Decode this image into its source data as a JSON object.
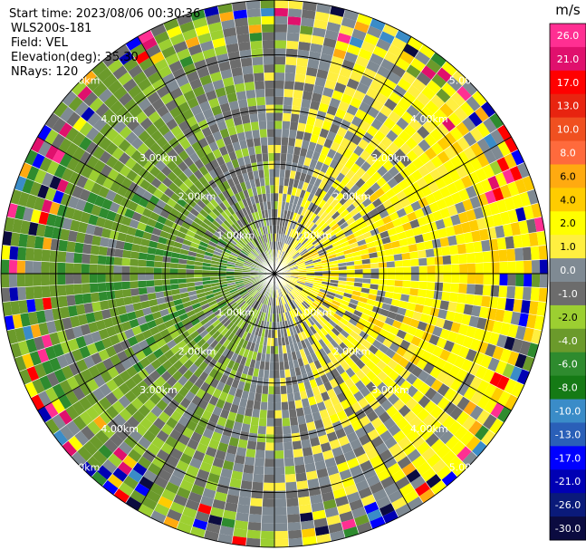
{
  "info": {
    "start_time": "Start time: 2023/08/06 00:30:36",
    "station": "WLS200s-181",
    "field": "Field: VEL",
    "elevation": "Elevation(deg): 35.30",
    "nrays": "NRays: 120"
  },
  "chart_data": {
    "type": "heatmap",
    "projection": "polar PPI (plan position indicator)",
    "field": "VEL",
    "units": "m/s",
    "nrays": 120,
    "range_rings_km": [
      1.0,
      2.0,
      3.0,
      4.0,
      5.0
    ],
    "ring_labels": [
      "1.00km",
      "2.00km",
      "3.00km",
      "4.00km",
      "5.00km"
    ],
    "colorbar": {
      "label": "m/s",
      "ticks": [
        "26.0",
        "21.0",
        "17.0",
        "13.0",
        "10.0",
        "8.0",
        "6.0",
        "4.0",
        "2.0",
        "1.0",
        "0.0",
        "-1.0",
        "-2.0",
        "-4.0",
        "-6.0",
        "-8.0",
        "-10.0",
        "-13.0",
        "-17.0",
        "-21.0",
        "-26.0",
        "-30.0"
      ],
      "colors": [
        "#ff2f92",
        "#e0106d",
        "#ff0000",
        "#e82410",
        "#f05020",
        "#ff6a3c",
        "#ffaa10",
        "#ffcc00",
        "#ffff00",
        "#ffef40",
        "#7f8a93",
        "#6c6c6c",
        "#9ccf31",
        "#6b9a2b",
        "#2e8b2e",
        "#157a15",
        "#3a8cc8",
        "#2a5fb8",
        "#0000ff",
        "#0000b4",
        "#0a1a7a",
        "#0b0b40"
      ]
    },
    "pattern_summary": "Dipole radial-velocity pattern: positive (yellow/orange) toward the east half, negative (green) toward the west half, with gray near-zero bands and noisy multicolor outer gates."
  }
}
